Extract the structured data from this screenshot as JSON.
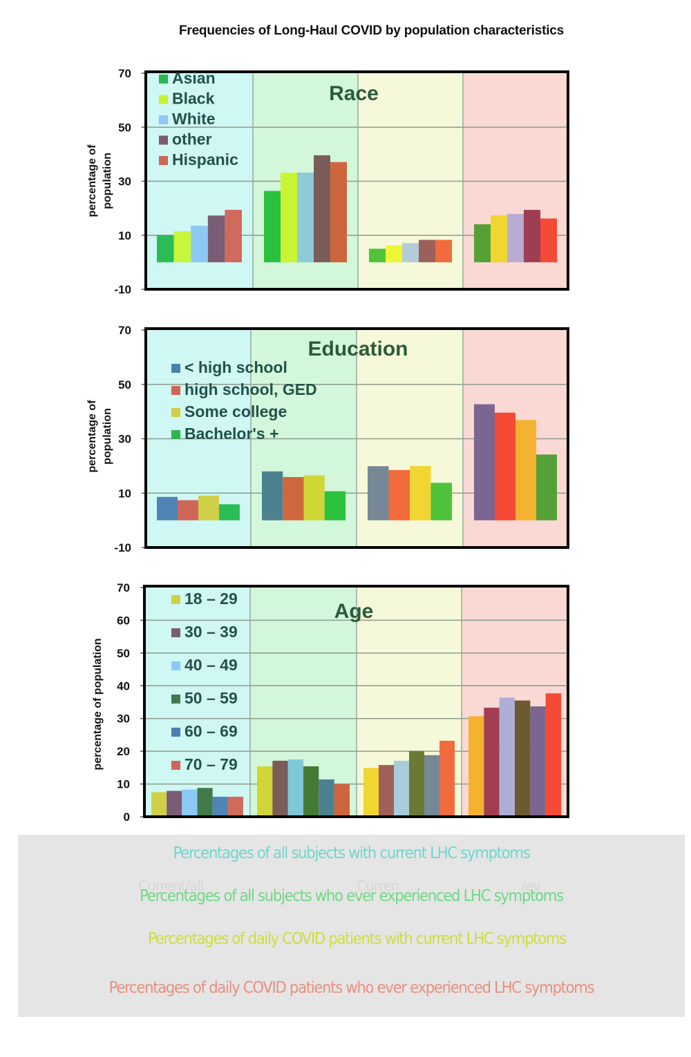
{
  "title": "Frequencies of Long-Haul COVID by population characteristics",
  "panel_colors": [
    "#cff7f3",
    "#d3f7da",
    "#f6f9d9",
    "#fad9d4"
  ],
  "captions": [
    {
      "text": "Percentages of all subjects with current LHC symptoms",
      "color": "#6fd6cf"
    },
    {
      "text": "Percentages of all subjects who ever experienced LHC symptoms",
      "color": "#6ed884"
    },
    {
      "text": "Percentages of daily COVID patients with current LHC symptoms",
      "color": "#cfdc3c"
    },
    {
      "text": "Percentages of daily COVID patients who ever experienced LHC symptoms",
      "color": "#e8907e"
    }
  ],
  "ghost_labels": [
    "Current/all",
    "Curren",
    "/ev"
  ],
  "chart_data": [
    {
      "type": "bar",
      "title": "Race",
      "xlabel": "",
      "ylabel": "percentage of population",
      "ylabel_lines": [
        "percentage of",
        "population"
      ],
      "ylim": [
        -10,
        70
      ],
      "yticks": [
        70,
        50,
        30,
        10,
        -10
      ],
      "grid": true,
      "legend_position": "top-left",
      "categories": [
        "Current / all subjects",
        "Ever / all subjects",
        "Current / daily COVID patients",
        "Ever / daily COVID patients"
      ],
      "series": [
        {
          "name": "Asian",
          "legend_color": "#2cb64f",
          "colors": [
            "#2bbd55",
            "#2bc13d",
            "#4fc23c",
            "#56a038"
          ],
          "values": [
            10.0,
            26.4,
            5.0,
            14.1
          ]
        },
        {
          "name": "Black",
          "legend_color": "#c8f230",
          "colors": [
            "#c9f53c",
            "#c9f534",
            "#eef534",
            "#f1d632"
          ],
          "values": [
            11.5,
            33.2,
            6.2,
            17.4
          ]
        },
        {
          "name": "White",
          "legend_color": "#8fc8f4",
          "colors": [
            "#8ccaf5",
            "#8ecad8",
            "#b3ccd9",
            "#b8acd4"
          ],
          "values": [
            13.5,
            33.2,
            7.1,
            17.9
          ]
        },
        {
          "name": "other",
          "legend_color": "#7a5a72",
          "colors": [
            "#7a5c74",
            "#7a5c58",
            "#9c605a",
            "#9e3e52"
          ],
          "values": [
            17.3,
            39.6,
            8.3,
            19.4
          ]
        },
        {
          "name": "Hispanic",
          "legend_color": "#d0655a",
          "colors": [
            "#cf6a5c",
            "#cd663c",
            "#f16b3c",
            "#f54a36"
          ],
          "values": [
            19.4,
            37.1,
            8.3,
            16.2
          ]
        }
      ]
    },
    {
      "type": "bar",
      "title": "Education",
      "xlabel": "",
      "ylabel": "percentage of population",
      "ylabel_lines": [
        "percentage of",
        "population"
      ],
      "ylim": [
        -10,
        70
      ],
      "yticks": [
        70,
        50,
        30,
        10,
        -10
      ],
      "grid": true,
      "legend_position": "top-left",
      "categories": [
        "Current / all subjects",
        "Ever / all subjects",
        "Current / daily COVID patients",
        "Ever / daily COVID patients"
      ],
      "series": [
        {
          "name": "< high school",
          "legend_color": "#4a7fae",
          "colors": [
            "#4f84b4",
            "#4c8190",
            "#768896",
            "#7a6690"
          ],
          "values": [
            8.6,
            18.0,
            19.9,
            42.7
          ]
        },
        {
          "name": "high school, GED",
          "legend_color": "#d0655a",
          "colors": [
            "#d06658",
            "#d0663c",
            "#f16b3c",
            "#f54a36"
          ],
          "values": [
            7.4,
            15.9,
            18.5,
            39.6
          ]
        },
        {
          "name": "Some college",
          "legend_color": "#cfcf46",
          "colors": [
            "#cfcf48",
            "#cfd636",
            "#f1d632",
            "#f3b330"
          ],
          "values": [
            9.1,
            16.5,
            20.0,
            36.9
          ]
        },
        {
          "name": "Bachelor's +",
          "legend_color": "#2cb64f",
          "colors": [
            "#2bbd55",
            "#2bc13d",
            "#4fc23c",
            "#56a038"
          ],
          "values": [
            5.9,
            10.7,
            13.8,
            24.2
          ]
        }
      ]
    },
    {
      "type": "bar",
      "title": "Age",
      "xlabel": "",
      "ylabel": "percentage of population",
      "ylabel_lines": [
        "percentage of population"
      ],
      "ylim": [
        0,
        70
      ],
      "yticks": [
        70,
        60,
        50,
        40,
        30,
        20,
        10,
        0
      ],
      "grid": true,
      "legend_position": "top-left",
      "categories": [
        "Current / all subjects",
        "Ever / all subjects",
        "Current / daily COVID patients",
        "Ever / daily COVID patients"
      ],
      "series": [
        {
          "name": "18 – 29",
          "legend_color": "#cfcf48",
          "colors": [
            "#cfcf48",
            "#cfd636",
            "#f1d632",
            "#f3b330"
          ],
          "values": [
            7.5,
            15.4,
            14.9,
            30.7
          ]
        },
        {
          "name": "30 – 39",
          "legend_color": "#7a5c74",
          "colors": [
            "#7a5c74",
            "#7a5c58",
            "#a0605a",
            "#a33e52"
          ],
          "values": [
            7.9,
            17.1,
            15.8,
            33.3
          ]
        },
        {
          "name": "40 – 49",
          "legend_color": "#8ccaf5",
          "colors": [
            "#8ccaf5",
            "#80c8d8",
            "#a9ccd9",
            "#acaed6"
          ],
          "values": [
            8.3,
            17.5,
            17.1,
            36.4
          ]
        },
        {
          "name": "50 – 59",
          "legend_color": "#437a4c",
          "colors": [
            "#437a4c",
            "#447a34",
            "#6a7a34",
            "#6e5a30"
          ],
          "values": [
            8.8,
            15.4,
            20.1,
            35.5
          ]
        },
        {
          "name": "60 – 69",
          "legend_color": "#4a7fae",
          "colors": [
            "#4f84b4",
            "#4c8190",
            "#768896",
            "#7a6690"
          ],
          "values": [
            6.1,
            11.4,
            18.8,
            33.7
          ]
        },
        {
          "name": "70 – 79",
          "legend_color": "#d0655a",
          "colors": [
            "#cf6a5c",
            "#cd663c",
            "#f16b3c",
            "#f54a36"
          ],
          "values": [
            6.1,
            10.0,
            23.2,
            37.7
          ]
        }
      ]
    }
  ]
}
